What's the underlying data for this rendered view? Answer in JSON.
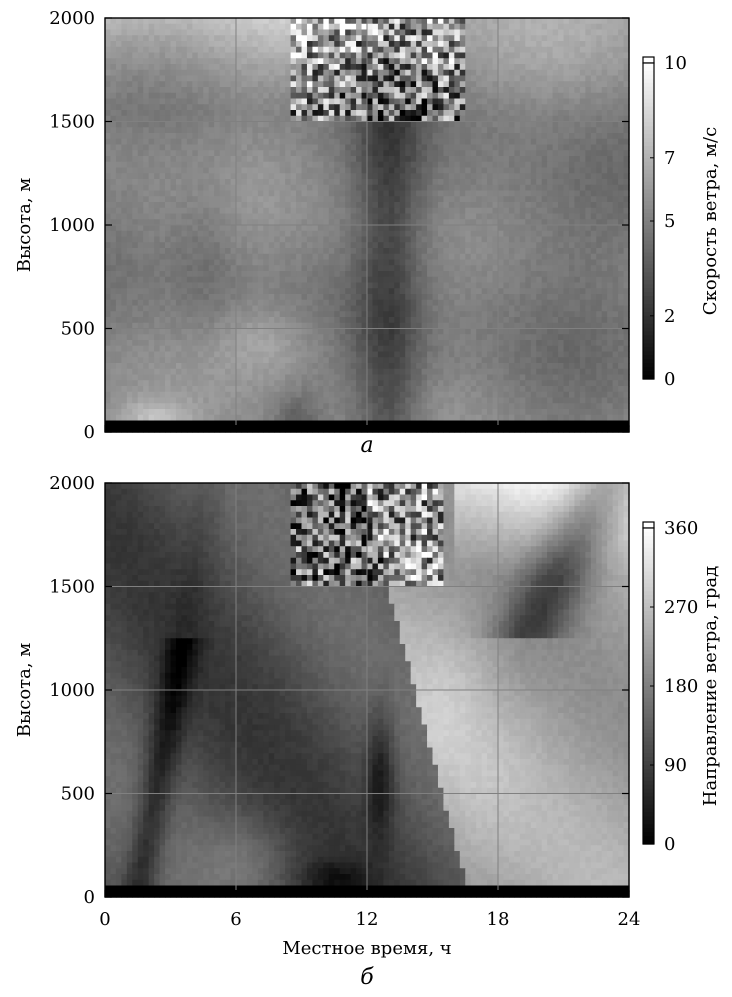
{
  "chart_data": [
    {
      "id": "panel-a",
      "type": "heatmap",
      "panel_label": "а",
      "x": {
        "min": 0,
        "max": 24,
        "ticks": [
          0,
          6,
          12,
          18,
          24
        ],
        "tick_labels_shown": false,
        "label": ""
      },
      "y": {
        "min": 0,
        "max": 2000,
        "ticks": [
          0,
          500,
          1000,
          1500,
          2000
        ],
        "label": "Высота, м"
      },
      "colorbar": {
        "min": 0,
        "max": 10,
        "ticks": [
          0,
          2,
          5,
          7,
          10
        ],
        "label": "Скорость ветра, м/с",
        "colormap": "gray"
      },
      "grid": true
    },
    {
      "id": "panel-b",
      "type": "heatmap",
      "panel_label": "б",
      "x": {
        "min": 0,
        "max": 24,
        "ticks": [
          0,
          6,
          12,
          18,
          24
        ],
        "tick_labels_shown": true,
        "label": "Местное время, ч"
      },
      "y": {
        "min": 0,
        "max": 2000,
        "ticks": [
          0,
          500,
          1000,
          1500,
          2000
        ],
        "label": "Высота, м"
      },
      "colorbar": {
        "min": 0,
        "max": 360,
        "ticks": [
          0,
          90,
          180,
          270,
          360
        ],
        "label": "Направление ветра, град",
        "colormap": "gray"
      },
      "grid": true
    }
  ]
}
